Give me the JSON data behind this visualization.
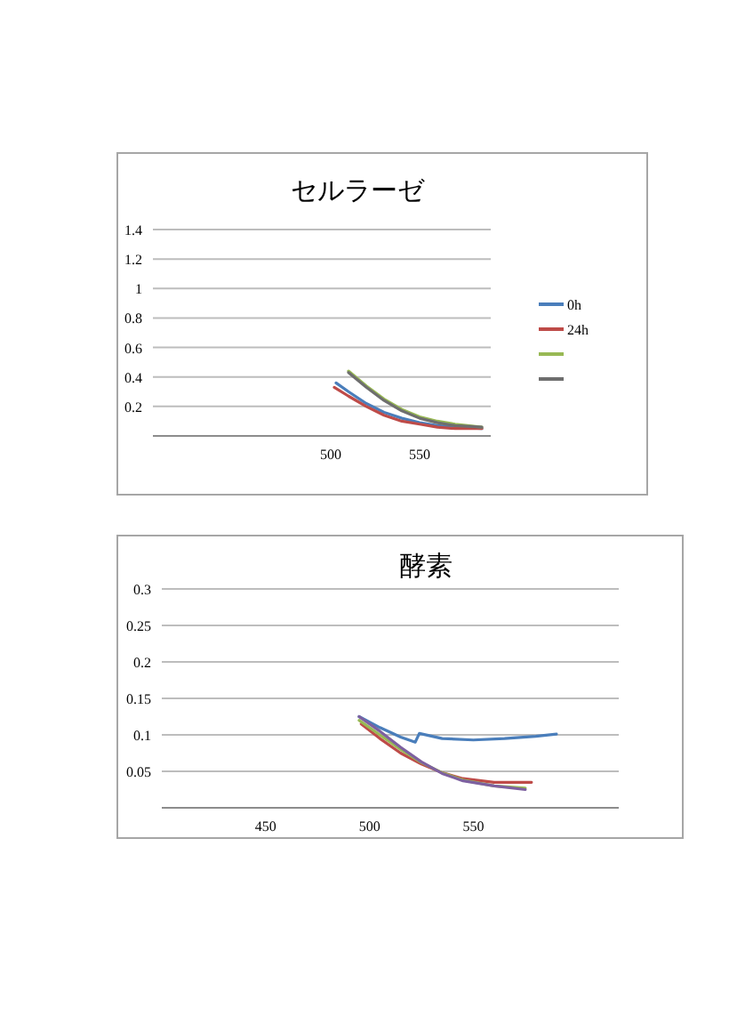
{
  "chart_data": [
    {
      "type": "line",
      "title": "セルラーゼ",
      "xlim": [
        400,
        590
      ],
      "xticks": [
        500,
        550
      ],
      "ylim": [
        0,
        1.4
      ],
      "yticks": [
        0.2,
        0.4,
        0.6,
        0.8,
        1,
        1.2,
        1.4
      ],
      "grid": "y",
      "legend": "right",
      "marker": "none",
      "series": [
        {
          "name": "0h",
          "color": "#4a7ebb",
          "x": [
            503,
            510,
            520,
            530,
            540,
            550,
            560,
            570,
            585
          ],
          "values": [
            0.36,
            0.3,
            0.22,
            0.16,
            0.12,
            0.09,
            0.07,
            0.06,
            0.05
          ]
        },
        {
          "name": "24h",
          "color": "#be4b48",
          "x": [
            502,
            510,
            520,
            530,
            540,
            550,
            560,
            570,
            585
          ],
          "values": [
            0.33,
            0.27,
            0.2,
            0.14,
            0.1,
            0.08,
            0.06,
            0.05,
            0.05
          ]
        },
        {
          "color": "#98b954",
          "x": [
            510,
            520,
            530,
            540,
            550,
            560,
            570,
            585
          ],
          "values": [
            0.44,
            0.34,
            0.25,
            0.18,
            0.13,
            0.1,
            0.08,
            0.06
          ]
        },
        {
          "color": "#6e6e6e",
          "x": [
            510,
            520,
            530,
            540,
            550,
            560,
            570,
            585
          ],
          "values": [
            0.43,
            0.33,
            0.24,
            0.17,
            0.12,
            0.09,
            0.07,
            0.06
          ]
        }
      ]
    },
    {
      "type": "line",
      "title": "酵素",
      "xlim": [
        400,
        620
      ],
      "xticks": [
        450,
        500,
        550
      ],
      "ylim": [
        0,
        0.3
      ],
      "yticks": [
        0.05,
        0.1,
        0.15,
        0.2,
        0.25,
        0.3
      ],
      "grid": "y",
      "marker": "none",
      "series": [
        {
          "color": "#4a7ebb",
          "x": [
            495,
            505,
            515,
            522,
            524,
            535,
            550,
            565,
            580,
            590
          ],
          "values": [
            0.125,
            0.11,
            0.097,
            0.09,
            0.102,
            0.095,
            0.093,
            0.095,
            0.098,
            0.101
          ]
        },
        {
          "color": "#be4b48",
          "x": [
            496,
            505,
            515,
            525,
            535,
            545,
            560,
            578
          ],
          "values": [
            0.115,
            0.095,
            0.075,
            0.06,
            0.048,
            0.04,
            0.035,
            0.035
          ]
        },
        {
          "color": "#98b954",
          "x": [
            495,
            505,
            515,
            525,
            535,
            545,
            560,
            575
          ],
          "values": [
            0.12,
            0.1,
            0.08,
            0.062,
            0.048,
            0.038,
            0.03,
            0.027
          ]
        },
        {
          "color": "#7d60a0",
          "x": [
            495,
            505,
            515,
            525,
            535,
            545,
            560,
            575
          ],
          "values": [
            0.125,
            0.105,
            0.083,
            0.063,
            0.047,
            0.037,
            0.03,
            0.025
          ]
        }
      ]
    }
  ]
}
